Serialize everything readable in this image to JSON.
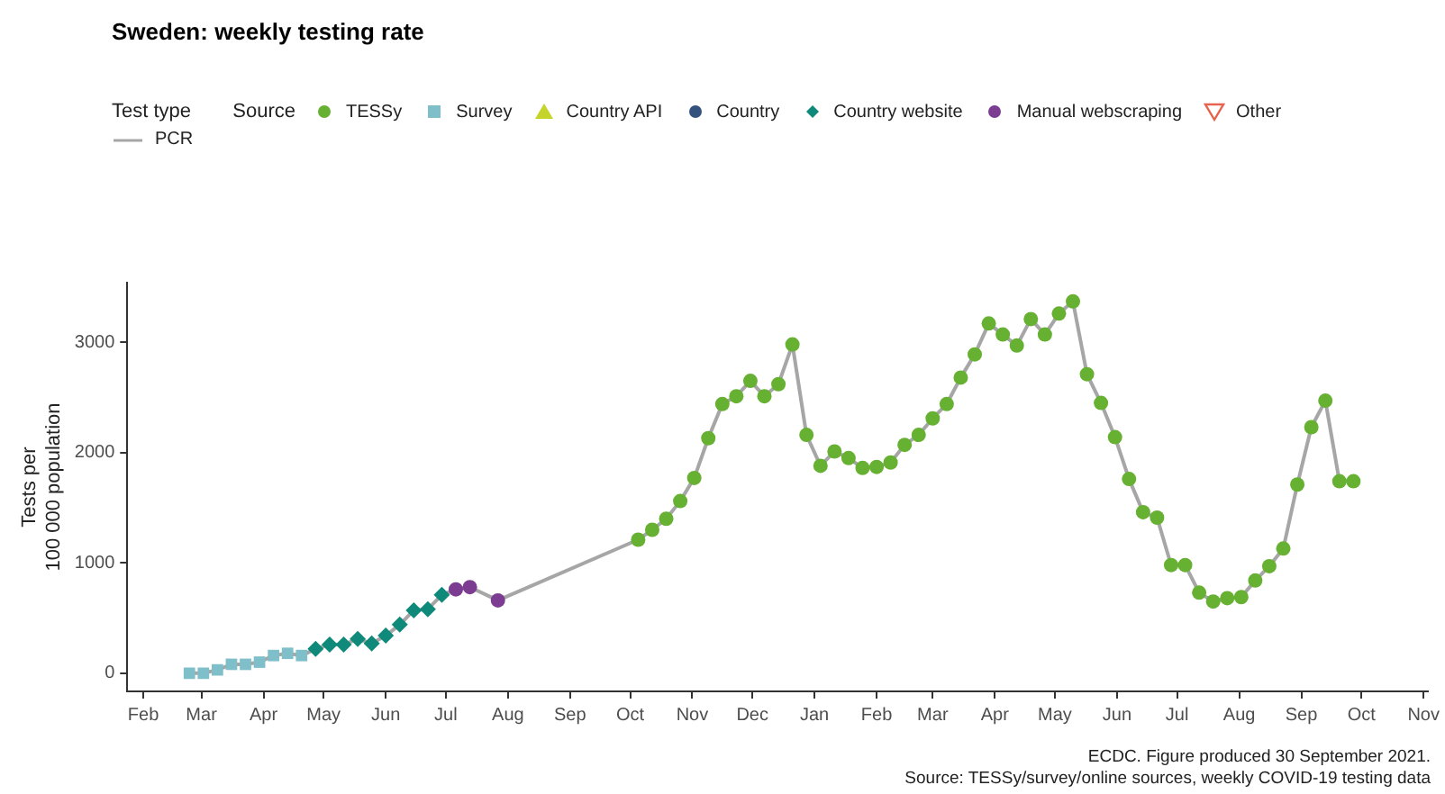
{
  "chart_data": {
    "type": "scatter",
    "title": "Sweden: weekly testing rate",
    "ylabel": "Tests per\n100 000 population",
    "legend_title": [
      "Test type",
      "Source"
    ],
    "legend": "top left",
    "xlim": [
      "2020-01-24",
      "2021-11-03"
    ],
    "xticks": [
      {
        "value": "2020-02-01",
        "label": "Feb"
      },
      {
        "value": "2020-03-01",
        "label": "Mar"
      },
      {
        "value": "2020-04-01",
        "label": "Apr"
      },
      {
        "value": "2020-05-01",
        "label": "May"
      },
      {
        "value": "2020-06-01",
        "label": "Jun"
      },
      {
        "value": "2020-07-01",
        "label": "Jul"
      },
      {
        "value": "2020-08-01",
        "label": "Aug"
      },
      {
        "value": "2020-09-01",
        "label": "Sep"
      },
      {
        "value": "2020-10-01",
        "label": "Oct"
      },
      {
        "value": "2020-11-01",
        "label": "Nov"
      },
      {
        "value": "2020-12-01",
        "label": "Dec"
      },
      {
        "value": "2021-01-01",
        "label": "Jan"
      },
      {
        "value": "2021-02-01",
        "label": "Feb"
      },
      {
        "value": "2021-03-01",
        "label": "Mar"
      },
      {
        "value": "2021-04-01",
        "label": "Apr"
      },
      {
        "value": "2021-05-01",
        "label": "May"
      },
      {
        "value": "2021-06-01",
        "label": "Jun"
      },
      {
        "value": "2021-07-01",
        "label": "Jul"
      },
      {
        "value": "2021-08-01",
        "label": "Aug"
      },
      {
        "value": "2021-09-01",
        "label": "Sep"
      },
      {
        "value": "2021-10-01",
        "label": "Oct"
      },
      {
        "value": "2021-11-01",
        "label": "Nov"
      }
    ],
    "ylim": [
      -165,
      3540
    ],
    "yticks": [
      0,
      1000,
      2000,
      3000
    ],
    "annotations": [
      "ECDC. Figure produced 30 September 2021.",
      "Source: TESSy/survey/online sources, weekly COVID-19 testing data"
    ],
    "series": [
      {
        "name": "PCR",
        "type": "line",
        "color": "#a6a6a6",
        "marker": "none",
        "x": [
          "2020-02-24",
          "2020-03-02",
          "2020-03-09",
          "2020-03-16",
          "2020-03-23",
          "2020-03-30",
          "2020-04-06",
          "2020-04-13",
          "2020-04-20",
          "2020-04-27",
          "2020-05-04",
          "2020-05-11",
          "2020-05-18",
          "2020-05-25",
          "2020-06-01",
          "2020-06-08",
          "2020-06-15",
          "2020-06-22",
          "2020-06-29",
          "2020-07-06",
          "2020-07-13",
          "2020-07-27",
          "2020-10-05",
          "2020-10-12",
          "2020-10-19",
          "2020-10-26",
          "2020-11-02",
          "2020-11-09",
          "2020-11-16",
          "2020-11-23",
          "2020-11-30",
          "2020-12-07",
          "2020-12-14",
          "2020-12-21",
          "2020-12-28",
          "2021-01-04",
          "2021-01-11",
          "2021-01-18",
          "2021-01-25",
          "2021-02-01",
          "2021-02-08",
          "2021-02-15",
          "2021-02-22",
          "2021-03-01",
          "2021-03-08",
          "2021-03-15",
          "2021-03-22",
          "2021-03-29",
          "2021-04-05",
          "2021-04-12",
          "2021-04-19",
          "2021-04-26",
          "2021-05-03",
          "2021-05-10",
          "2021-05-17",
          "2021-05-24",
          "2021-05-31",
          "2021-06-07",
          "2021-06-14",
          "2021-06-21",
          "2021-06-28",
          "2021-07-05",
          "2021-07-12",
          "2021-07-19",
          "2021-07-26",
          "2021-08-02",
          "2021-08-09",
          "2021-08-16",
          "2021-08-23",
          "2021-08-30",
          "2021-09-06",
          "2021-09-13",
          "2021-09-20",
          "2021-09-27"
        ],
        "values": [
          0,
          0,
          30,
          80,
          80,
          100,
          160,
          180,
          160,
          220,
          260,
          260,
          310,
          270,
          340,
          440,
          570,
          580,
          710,
          760,
          780,
          660,
          1210,
          1300,
          1400,
          1560,
          1770,
          2130,
          2440,
          2510,
          2650,
          2510,
          2620,
          2980,
          2160,
          1880,
          2010,
          1950,
          1860,
          1870,
          1910,
          2070,
          2160,
          2310,
          2440,
          2680,
          2890,
          3170,
          3070,
          2970,
          3210,
          3070,
          3260,
          3370,
          2710,
          2450,
          2140,
          1760,
          1460,
          1410,
          980,
          980,
          730,
          650,
          680,
          690,
          840,
          970,
          1130,
          1710,
          2230,
          2470,
          1740,
          1740
        ]
      },
      {
        "name": "TESSy",
        "color": "#66b032",
        "marker": "circle",
        "x": [
          "2020-10-05",
          "2020-10-12",
          "2020-10-19",
          "2020-10-26",
          "2020-11-02",
          "2020-11-09",
          "2020-11-16",
          "2020-11-23",
          "2020-11-30",
          "2020-12-07",
          "2020-12-14",
          "2020-12-21",
          "2020-12-28",
          "2021-01-04",
          "2021-01-11",
          "2021-01-18",
          "2021-01-25",
          "2021-02-01",
          "2021-02-08",
          "2021-02-15",
          "2021-02-22",
          "2021-03-01",
          "2021-03-08",
          "2021-03-15",
          "2021-03-22",
          "2021-03-29",
          "2021-04-05",
          "2021-04-12",
          "2021-04-19",
          "2021-04-26",
          "2021-05-03",
          "2021-05-10",
          "2021-05-17",
          "2021-05-24",
          "2021-05-31",
          "2021-06-07",
          "2021-06-14",
          "2021-06-21",
          "2021-06-28",
          "2021-07-05",
          "2021-07-12",
          "2021-07-19",
          "2021-07-26",
          "2021-08-02",
          "2021-08-09",
          "2021-08-16",
          "2021-08-23",
          "2021-08-30",
          "2021-09-06",
          "2021-09-13",
          "2021-09-20",
          "2021-09-27"
        ],
        "values": [
          1210,
          1300,
          1400,
          1560,
          1770,
          2130,
          2440,
          2510,
          2650,
          2510,
          2620,
          2980,
          2160,
          1880,
          2010,
          1950,
          1860,
          1870,
          1910,
          2070,
          2160,
          2310,
          2440,
          2680,
          2890,
          3170,
          3070,
          2970,
          3210,
          3070,
          3260,
          3370,
          2710,
          2450,
          2140,
          1760,
          1460,
          1410,
          980,
          980,
          730,
          650,
          680,
          690,
          840,
          970,
          1130,
          1710,
          2230,
          2470,
          1740,
          1740
        ]
      },
      {
        "name": "Survey",
        "color": "#7fbfca",
        "marker": "square",
        "x": [
          "2020-02-24",
          "2020-03-02",
          "2020-03-09",
          "2020-03-16",
          "2020-03-23",
          "2020-03-30",
          "2020-04-06",
          "2020-04-13",
          "2020-04-20"
        ],
        "values": [
          0,
          0,
          30,
          80,
          80,
          100,
          160,
          180,
          160
        ]
      },
      {
        "name": "Country API",
        "color": "#c5d42a",
        "marker": "triangle"
      },
      {
        "name": "Country",
        "color": "#34527e",
        "marker": "circle"
      },
      {
        "name": "Country website",
        "color": "#0f8a7a",
        "marker": "diamond",
        "x": [
          "2020-04-27",
          "2020-05-04",
          "2020-05-11",
          "2020-05-18",
          "2020-05-25",
          "2020-06-01",
          "2020-06-08",
          "2020-06-15",
          "2020-06-22",
          "2020-06-29"
        ],
        "values": [
          220,
          260,
          260,
          310,
          270,
          340,
          440,
          570,
          580,
          710
        ]
      },
      {
        "name": "Manual webscraping",
        "color": "#7b3c91",
        "marker": "circle",
        "x": [
          "2020-07-06",
          "2020-07-13",
          "2020-07-27"
        ],
        "values": [
          760,
          780,
          660
        ]
      },
      {
        "name": "Other",
        "color": "#e8624f",
        "marker": "triangle-down"
      }
    ]
  }
}
